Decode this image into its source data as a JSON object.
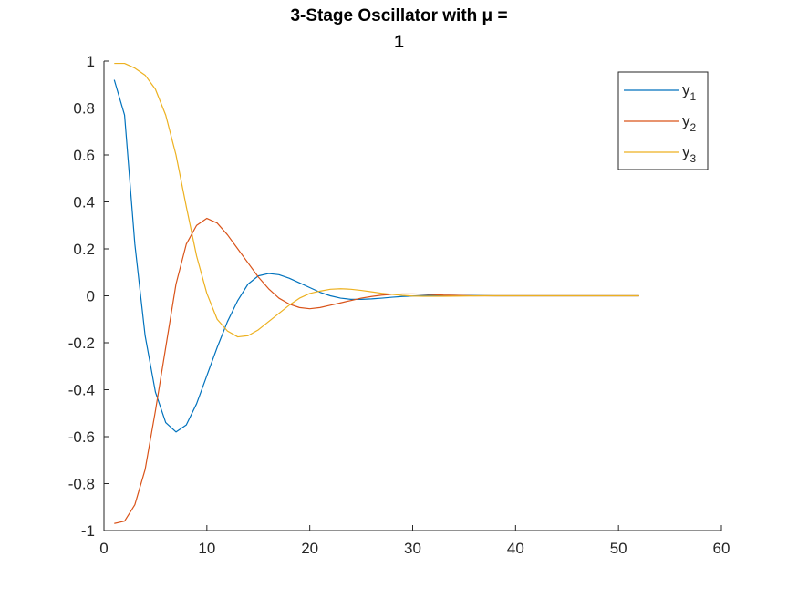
{
  "chart_data": {
    "type": "line",
    "title_line_1": "3-Stage Oscillator with μ =",
    "title_line_2": "1",
    "xlabel": "",
    "ylabel": "",
    "xlim": [
      0,
      60
    ],
    "ylim": [
      -1,
      1
    ],
    "xticks": [
      0,
      10,
      20,
      30,
      40,
      50,
      60
    ],
    "yticks": [
      -1,
      -0.8,
      -0.6,
      -0.4,
      -0.2,
      0,
      0.2,
      0.4,
      0.6,
      0.8,
      1
    ],
    "grid": false,
    "legend_position": "top-right",
    "x": [
      1,
      2,
      3,
      4,
      5,
      6,
      7,
      8,
      9,
      10,
      11,
      12,
      13,
      14,
      15,
      16,
      17,
      18,
      19,
      20,
      21,
      22,
      23,
      24,
      25,
      26,
      27,
      28,
      29,
      30,
      31,
      32,
      33,
      34,
      35,
      36,
      37,
      38,
      39,
      40,
      41,
      42,
      43,
      44,
      45,
      46,
      47,
      48,
      49,
      50,
      51,
      52
    ],
    "series": [
      {
        "name": "y",
        "subscript": "1",
        "color": "#0072BD",
        "values": [
          0.92,
          0.77,
          0.22,
          -0.17,
          -0.41,
          -0.54,
          -0.58,
          -0.55,
          -0.46,
          -0.34,
          -0.22,
          -0.11,
          -0.02,
          0.05,
          0.085,
          0.095,
          0.09,
          0.075,
          0.055,
          0.035,
          0.015,
          0.0,
          -0.01,
          -0.015,
          -0.015,
          -0.013,
          -0.01,
          -0.006,
          -0.003,
          -0.001,
          0.001,
          0.002,
          0.002,
          0.002,
          0.0015,
          0.001,
          0.0005,
          0.0,
          0,
          0,
          0,
          0,
          0,
          0,
          0,
          0,
          0,
          0,
          0,
          0,
          0,
          0
        ]
      },
      {
        "name": "y",
        "subscript": "2",
        "color": "#D95319",
        "values": [
          -0.97,
          -0.96,
          -0.89,
          -0.74,
          -0.49,
          -0.22,
          0.05,
          0.22,
          0.3,
          0.33,
          0.31,
          0.26,
          0.2,
          0.14,
          0.08,
          0.03,
          -0.01,
          -0.035,
          -0.05,
          -0.055,
          -0.05,
          -0.04,
          -0.03,
          -0.02,
          -0.01,
          -0.003,
          0.003,
          0.006,
          0.008,
          0.008,
          0.007,
          0.005,
          0.003,
          0.002,
          0.001,
          0,
          0,
          0,
          0,
          0,
          0,
          0,
          0,
          0,
          0,
          0,
          0,
          0,
          0,
          0,
          0,
          0
        ]
      },
      {
        "name": "y",
        "subscript": "3",
        "color": "#EDB120",
        "values": [
          0.99,
          0.99,
          0.97,
          0.94,
          0.88,
          0.77,
          0.6,
          0.38,
          0.17,
          0.01,
          -0.1,
          -0.15,
          -0.175,
          -0.17,
          -0.145,
          -0.11,
          -0.075,
          -0.04,
          -0.01,
          0.01,
          0.02,
          0.028,
          0.03,
          0.028,
          0.023,
          0.017,
          0.011,
          0.006,
          0.002,
          -0.001,
          -0.002,
          -0.002,
          -0.002,
          -0.0015,
          -0.001,
          -0.0005,
          0,
          0,
          0,
          0,
          0,
          0,
          0,
          0,
          0,
          0,
          0,
          0,
          0,
          0,
          0,
          0
        ]
      }
    ]
  }
}
